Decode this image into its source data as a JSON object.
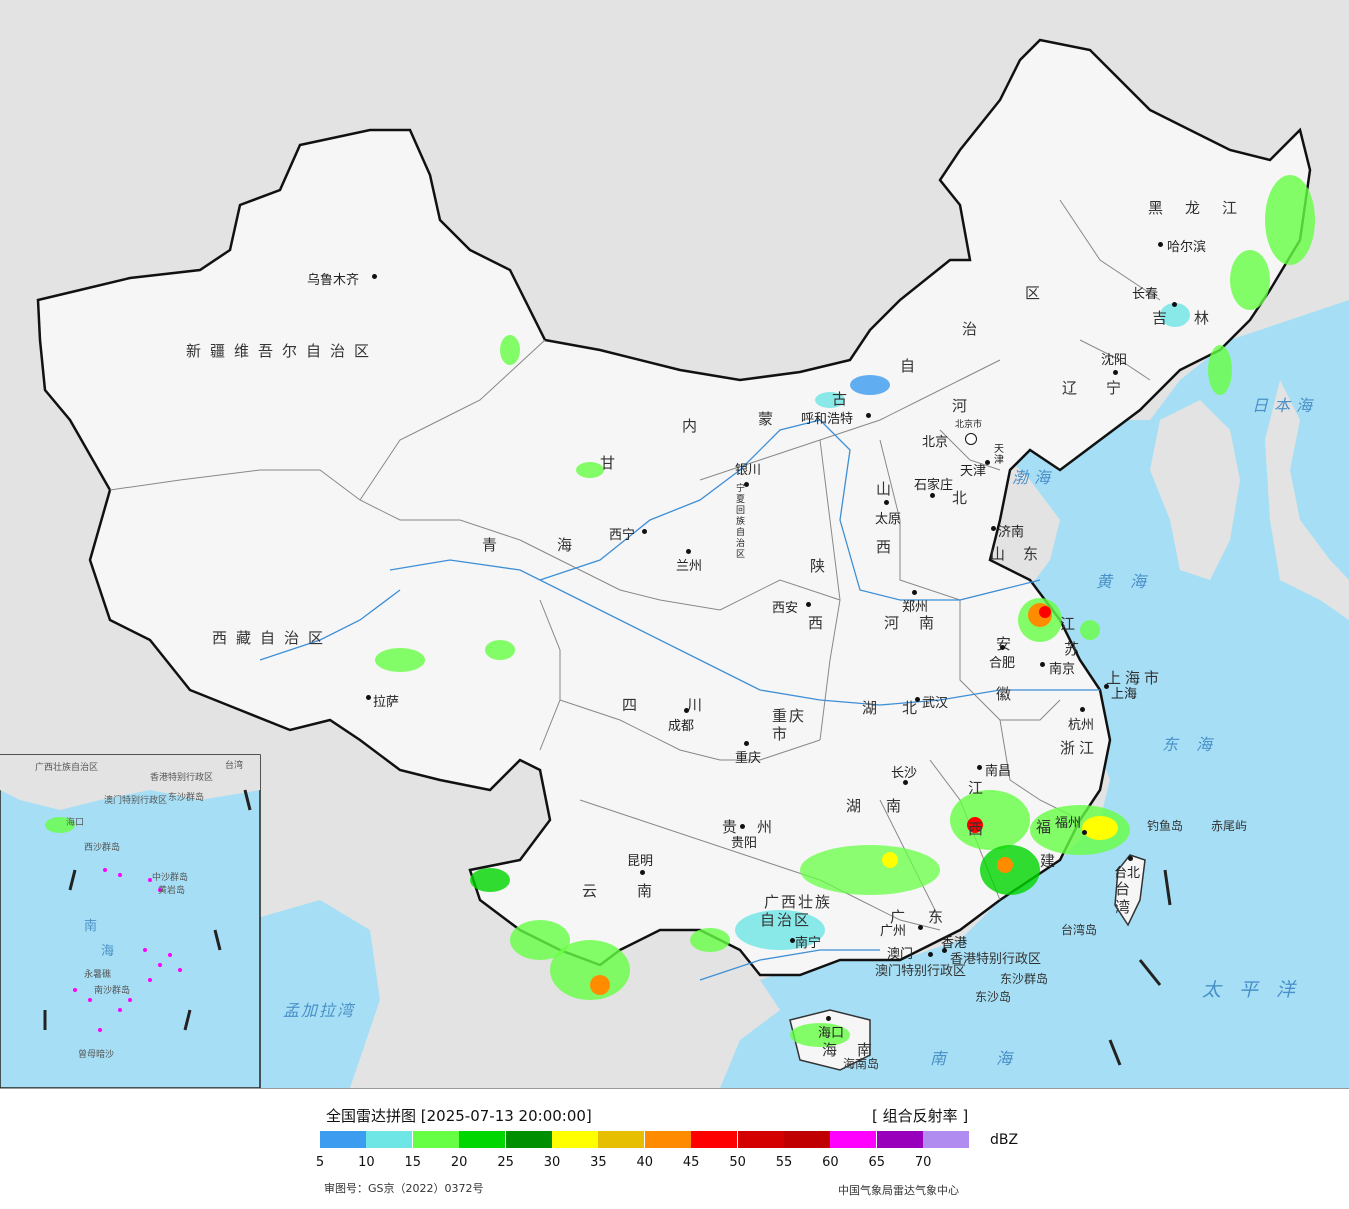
{
  "title": "全国雷达拼图 [2025-07-13 20:00:00]",
  "product": "[ 组合反射率 ]",
  "unit": "dBZ",
  "legend": {
    "colors": [
      "#3b9cf0",
      "#6ee6e6",
      "#66ff44",
      "#00d600",
      "#008f00",
      "#ffff00",
      "#e6c000",
      "#ff8c00",
      "#ff0000",
      "#d40000",
      "#c00000",
      "#ff00ff",
      "#9900bb",
      "#b08cf0"
    ],
    "ticks": [
      "5",
      "10",
      "15",
      "20",
      "25",
      "30",
      "35",
      "40",
      "45",
      "50",
      "55",
      "60",
      "65",
      "70"
    ]
  },
  "approval": "审图号：GS京（2022）0372号",
  "credit": "中国气象局雷达气象中心",
  "provinces": [
    "新疆维吾尔自治区",
    "西藏自治区",
    "青海",
    "甘",
    "四川",
    "云南",
    "贵州",
    "重庆市",
    "陕",
    "西",
    "宁夏回族自治区",
    "内",
    "蒙",
    "古",
    "自",
    "治",
    "区",
    "山",
    "西",
    "河南",
    "湖",
    "北",
    "湖",
    "南",
    "江",
    "西",
    "安",
    "徽",
    "江",
    "苏",
    "浙江",
    "福",
    "建",
    "广西壮族",
    "自治区",
    "广",
    "东",
    "海南",
    "山东",
    "河",
    "北",
    "辽",
    "宁",
    "吉",
    "林",
    "黑龙江",
    "上海市"
  ],
  "cities": [
    "乌鲁木齐",
    "拉萨",
    "西宁",
    "兰州",
    "成都",
    "昆明",
    "贵阳",
    "重庆",
    "银川",
    "呼和浩特",
    "北京",
    "天津",
    "石家庄",
    "太原",
    "西安",
    "郑州",
    "济南",
    "合肥",
    "南京",
    "上海",
    "杭州",
    "武汉",
    "长沙",
    "南昌",
    "福州",
    "台北",
    "广州",
    "香港",
    "澳门",
    "南宁",
    "海口",
    "哈尔滨",
    "长春",
    "沈阳",
    "北京市",
    "天津"
  ],
  "seas": [
    "日本海",
    "渤海",
    "黄海",
    "东海",
    "太平洋",
    "南海",
    "孟加拉湾"
  ],
  "islands": [
    "钓鱼岛",
    "赤尾屿",
    "台湾岛",
    "东沙群岛",
    "东沙岛",
    "海南岛",
    "香港特别行政区",
    "澳门特别行政区",
    "台湾"
  ],
  "inset": {
    "labels": [
      "南",
      "海",
      "中沙群岛",
      "黄岩岛",
      "永暑礁",
      "南沙群岛",
      "曾母暗沙",
      "西沙群岛",
      "东沙群岛",
      "香港特别行政区",
      "澳门特别行政区",
      "广西壮族自治区",
      "海口",
      "台湾"
    ]
  }
}
